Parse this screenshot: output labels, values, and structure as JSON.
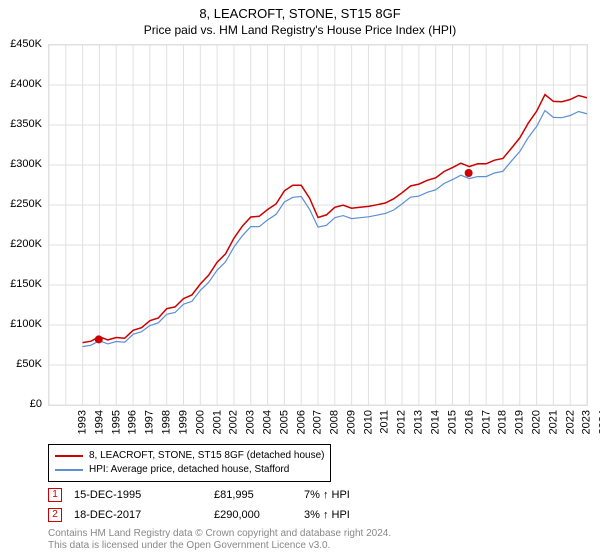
{
  "title": "8, LEACROFT, STONE, ST15 8GF",
  "subtitle": "Price paid vs. HM Land Registry's House Price Index (HPI)",
  "chart": {
    "type": "line",
    "background_color": "#ffffff",
    "grid_color": "#e0e0e0",
    "ylim": [
      0,
      450000
    ],
    "ytick_step": 50000,
    "ylabels": [
      "£0",
      "£50K",
      "£100K",
      "£150K",
      "£200K",
      "£250K",
      "£300K",
      "£350K",
      "£400K",
      "£450K"
    ],
    "xlim": [
      1993,
      2025
    ],
    "xlabels": [
      "1993",
      "1994",
      "1995",
      "1996",
      "1997",
      "1998",
      "1999",
      "2000",
      "2001",
      "2002",
      "2003",
      "2004",
      "2005",
      "2006",
      "2007",
      "2008",
      "2009",
      "2010",
      "2011",
      "2012",
      "2013",
      "2014",
      "2015",
      "2016",
      "2017",
      "2018",
      "2019",
      "2020",
      "2021",
      "2022",
      "2023",
      "2024",
      "2025"
    ],
    "series": [
      {
        "name": "8, LEACROFT, STONE, ST15 8GF (detached house)",
        "color": "#cc0000",
        "line_width": 1.5,
        "data": [
          [
            1995,
            78000
          ],
          [
            1995.5,
            80000
          ],
          [
            1996,
            82000
          ],
          [
            1996.5,
            83000
          ],
          [
            1997,
            84000
          ],
          [
            1997.5,
            87000
          ],
          [
            1998,
            92000
          ],
          [
            1998.5,
            97000
          ],
          [
            1999,
            102000
          ],
          [
            1999.5,
            110000
          ],
          [
            2000,
            120000
          ],
          [
            2000.5,
            126000
          ],
          [
            2001,
            132000
          ],
          [
            2001.5,
            138000
          ],
          [
            2002,
            148000
          ],
          [
            2002.5,
            163000
          ],
          [
            2003,
            178000
          ],
          [
            2003.5,
            192000
          ],
          [
            2004,
            208000
          ],
          [
            2004.5,
            224000
          ],
          [
            2005,
            232000
          ],
          [
            2005.5,
            236000
          ],
          [
            2006,
            244000
          ],
          [
            2006.5,
            254000
          ],
          [
            2007,
            268000
          ],
          [
            2007.5,
            275000
          ],
          [
            2008,
            272000
          ],
          [
            2008.5,
            258000
          ],
          [
            2009,
            234000
          ],
          [
            2009.5,
            240000
          ],
          [
            2010,
            248000
          ],
          [
            2010.5,
            250000
          ],
          [
            2011,
            244000
          ],
          [
            2011.5,
            246000
          ],
          [
            2012,
            248000
          ],
          [
            2012.5,
            252000
          ],
          [
            2013,
            254000
          ],
          [
            2013.5,
            258000
          ],
          [
            2014,
            264000
          ],
          [
            2014.5,
            272000
          ],
          [
            2015,
            276000
          ],
          [
            2015.5,
            282000
          ],
          [
            2016,
            286000
          ],
          [
            2016.5,
            292000
          ],
          [
            2017,
            296000
          ],
          [
            2017.5,
            300000
          ],
          [
            2018,
            298000
          ],
          [
            2018.5,
            302000
          ],
          [
            2019,
            304000
          ],
          [
            2019.5,
            306000
          ],
          [
            2020,
            308000
          ],
          [
            2020.5,
            318000
          ],
          [
            2021,
            334000
          ],
          [
            2021.5,
            352000
          ],
          [
            2022,
            370000
          ],
          [
            2022.5,
            388000
          ],
          [
            2023,
            380000
          ],
          [
            2023.5,
            376000
          ],
          [
            2024,
            382000
          ],
          [
            2024.5,
            386000
          ],
          [
            2025,
            384000
          ]
        ]
      },
      {
        "name": "HPI: Average price, detached house, Stafford",
        "color": "#5b8fd6",
        "line_width": 1.2,
        "data": [
          [
            1995,
            73000
          ],
          [
            1995.5,
            75000
          ],
          [
            1996,
            77000
          ],
          [
            1996.5,
            78000
          ],
          [
            1997,
            79000
          ],
          [
            1997.5,
            82000
          ],
          [
            1998,
            87000
          ],
          [
            1998.5,
            92000
          ],
          [
            1999,
            96000
          ],
          [
            1999.5,
            104000
          ],
          [
            2000,
            113000
          ],
          [
            2000.5,
            119000
          ],
          [
            2001,
            125000
          ],
          [
            2001.5,
            130000
          ],
          [
            2002,
            140000
          ],
          [
            2002.5,
            154000
          ],
          [
            2003,
            168000
          ],
          [
            2003.5,
            182000
          ],
          [
            2004,
            197000
          ],
          [
            2004.5,
            212000
          ],
          [
            2005,
            220000
          ],
          [
            2005.5,
            223000
          ],
          [
            2006,
            231000
          ],
          [
            2006.5,
            241000
          ],
          [
            2007,
            254000
          ],
          [
            2007.5,
            260000
          ],
          [
            2008,
            258000
          ],
          [
            2008.5,
            244000
          ],
          [
            2009,
            222000
          ],
          [
            2009.5,
            227000
          ],
          [
            2010,
            235000
          ],
          [
            2010.5,
            237000
          ],
          [
            2011,
            231000
          ],
          [
            2011.5,
            233000
          ],
          [
            2012,
            235000
          ],
          [
            2012.5,
            239000
          ],
          [
            2013,
            241000
          ],
          [
            2013.5,
            244000
          ],
          [
            2014,
            250000
          ],
          [
            2014.5,
            258000
          ],
          [
            2015,
            261000
          ],
          [
            2015.5,
            267000
          ],
          [
            2016,
            271000
          ],
          [
            2016.5,
            277000
          ],
          [
            2017,
            281000
          ],
          [
            2017.5,
            285000
          ],
          [
            2018,
            283000
          ],
          [
            2018.5,
            286000
          ],
          [
            2019,
            288000
          ],
          [
            2019.5,
            290000
          ],
          [
            2020,
            292000
          ],
          [
            2020.5,
            302000
          ],
          [
            2021,
            317000
          ],
          [
            2021.5,
            334000
          ],
          [
            2022,
            351000
          ],
          [
            2022.5,
            368000
          ],
          [
            2023,
            360000
          ],
          [
            2023.5,
            356000
          ],
          [
            2024,
            362000
          ],
          [
            2024.5,
            366000
          ],
          [
            2025,
            364000
          ]
        ]
      }
    ],
    "sale_markers": [
      {
        "n": "1",
        "year": 1995.96,
        "price": 81995
      },
      {
        "n": "2",
        "year": 2017.96,
        "price": 290000
      }
    ],
    "sale_dot_color": "#cc0000",
    "label_fontsize": 11
  },
  "legend": {
    "series1": "8, LEACROFT, STONE, ST15 8GF (detached house)",
    "series2": "HPI: Average price, detached house, Stafford"
  },
  "sales": [
    {
      "n": "1",
      "date": "15-DEC-1995",
      "price": "£81,995",
      "pct": "7% ↑ HPI"
    },
    {
      "n": "2",
      "date": "18-DEC-2017",
      "price": "£290,000",
      "pct": "3% ↑ HPI"
    }
  ],
  "licence": {
    "line1": "Contains HM Land Registry data © Crown copyright and database right 2024.",
    "line2": "This data is licensed under the Open Government Licence v3.0."
  }
}
